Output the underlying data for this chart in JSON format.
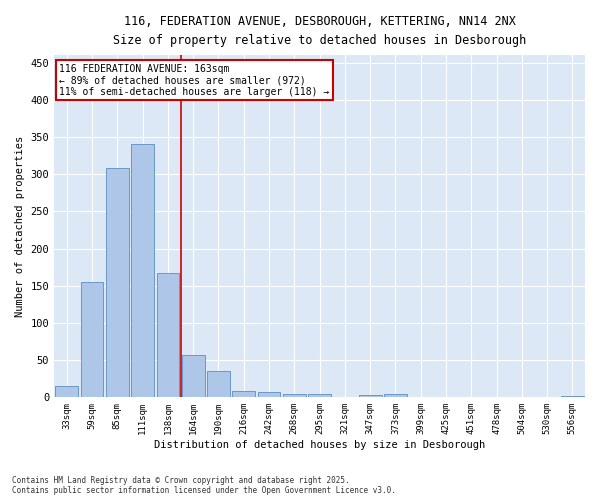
{
  "title1": "116, FEDERATION AVENUE, DESBOROUGH, KETTERING, NN14 2NX",
  "title2": "Size of property relative to detached houses in Desborough",
  "xlabel": "Distribution of detached houses by size in Desborough",
  "ylabel": "Number of detached properties",
  "categories": [
    "33sqm",
    "59sqm",
    "85sqm",
    "111sqm",
    "138sqm",
    "164sqm",
    "190sqm",
    "216sqm",
    "242sqm",
    "268sqm",
    "295sqm",
    "321sqm",
    "347sqm",
    "373sqm",
    "399sqm",
    "425sqm",
    "451sqm",
    "478sqm",
    "504sqm",
    "530sqm",
    "556sqm"
  ],
  "values": [
    15,
    155,
    308,
    341,
    167,
    57,
    35,
    9,
    7,
    4,
    4,
    0,
    3,
    4,
    0,
    0,
    0,
    0,
    0,
    0,
    2
  ],
  "bar_color": "#aec6e8",
  "bar_edge_color": "#5a8fc2",
  "vline_pos": 4.5,
  "annotation_title": "116 FEDERATION AVENUE: 163sqm",
  "annotation_line2": "← 89% of detached houses are smaller (972)",
  "annotation_line3": "11% of semi-detached houses are larger (118) →",
  "annotation_box_color": "#ffffff",
  "annotation_box_edge": "#cc0000",
  "ylim": [
    0,
    460
  ],
  "yticks": [
    0,
    50,
    100,
    150,
    200,
    250,
    300,
    350,
    400,
    450
  ],
  "bg_color": "#dce8f5",
  "grid_color": "#ffffff",
  "fig_bg_color": "#ffffff",
  "footer1": "Contains HM Land Registry data © Crown copyright and database right 2025.",
  "footer2": "Contains public sector information licensed under the Open Government Licence v3.0."
}
